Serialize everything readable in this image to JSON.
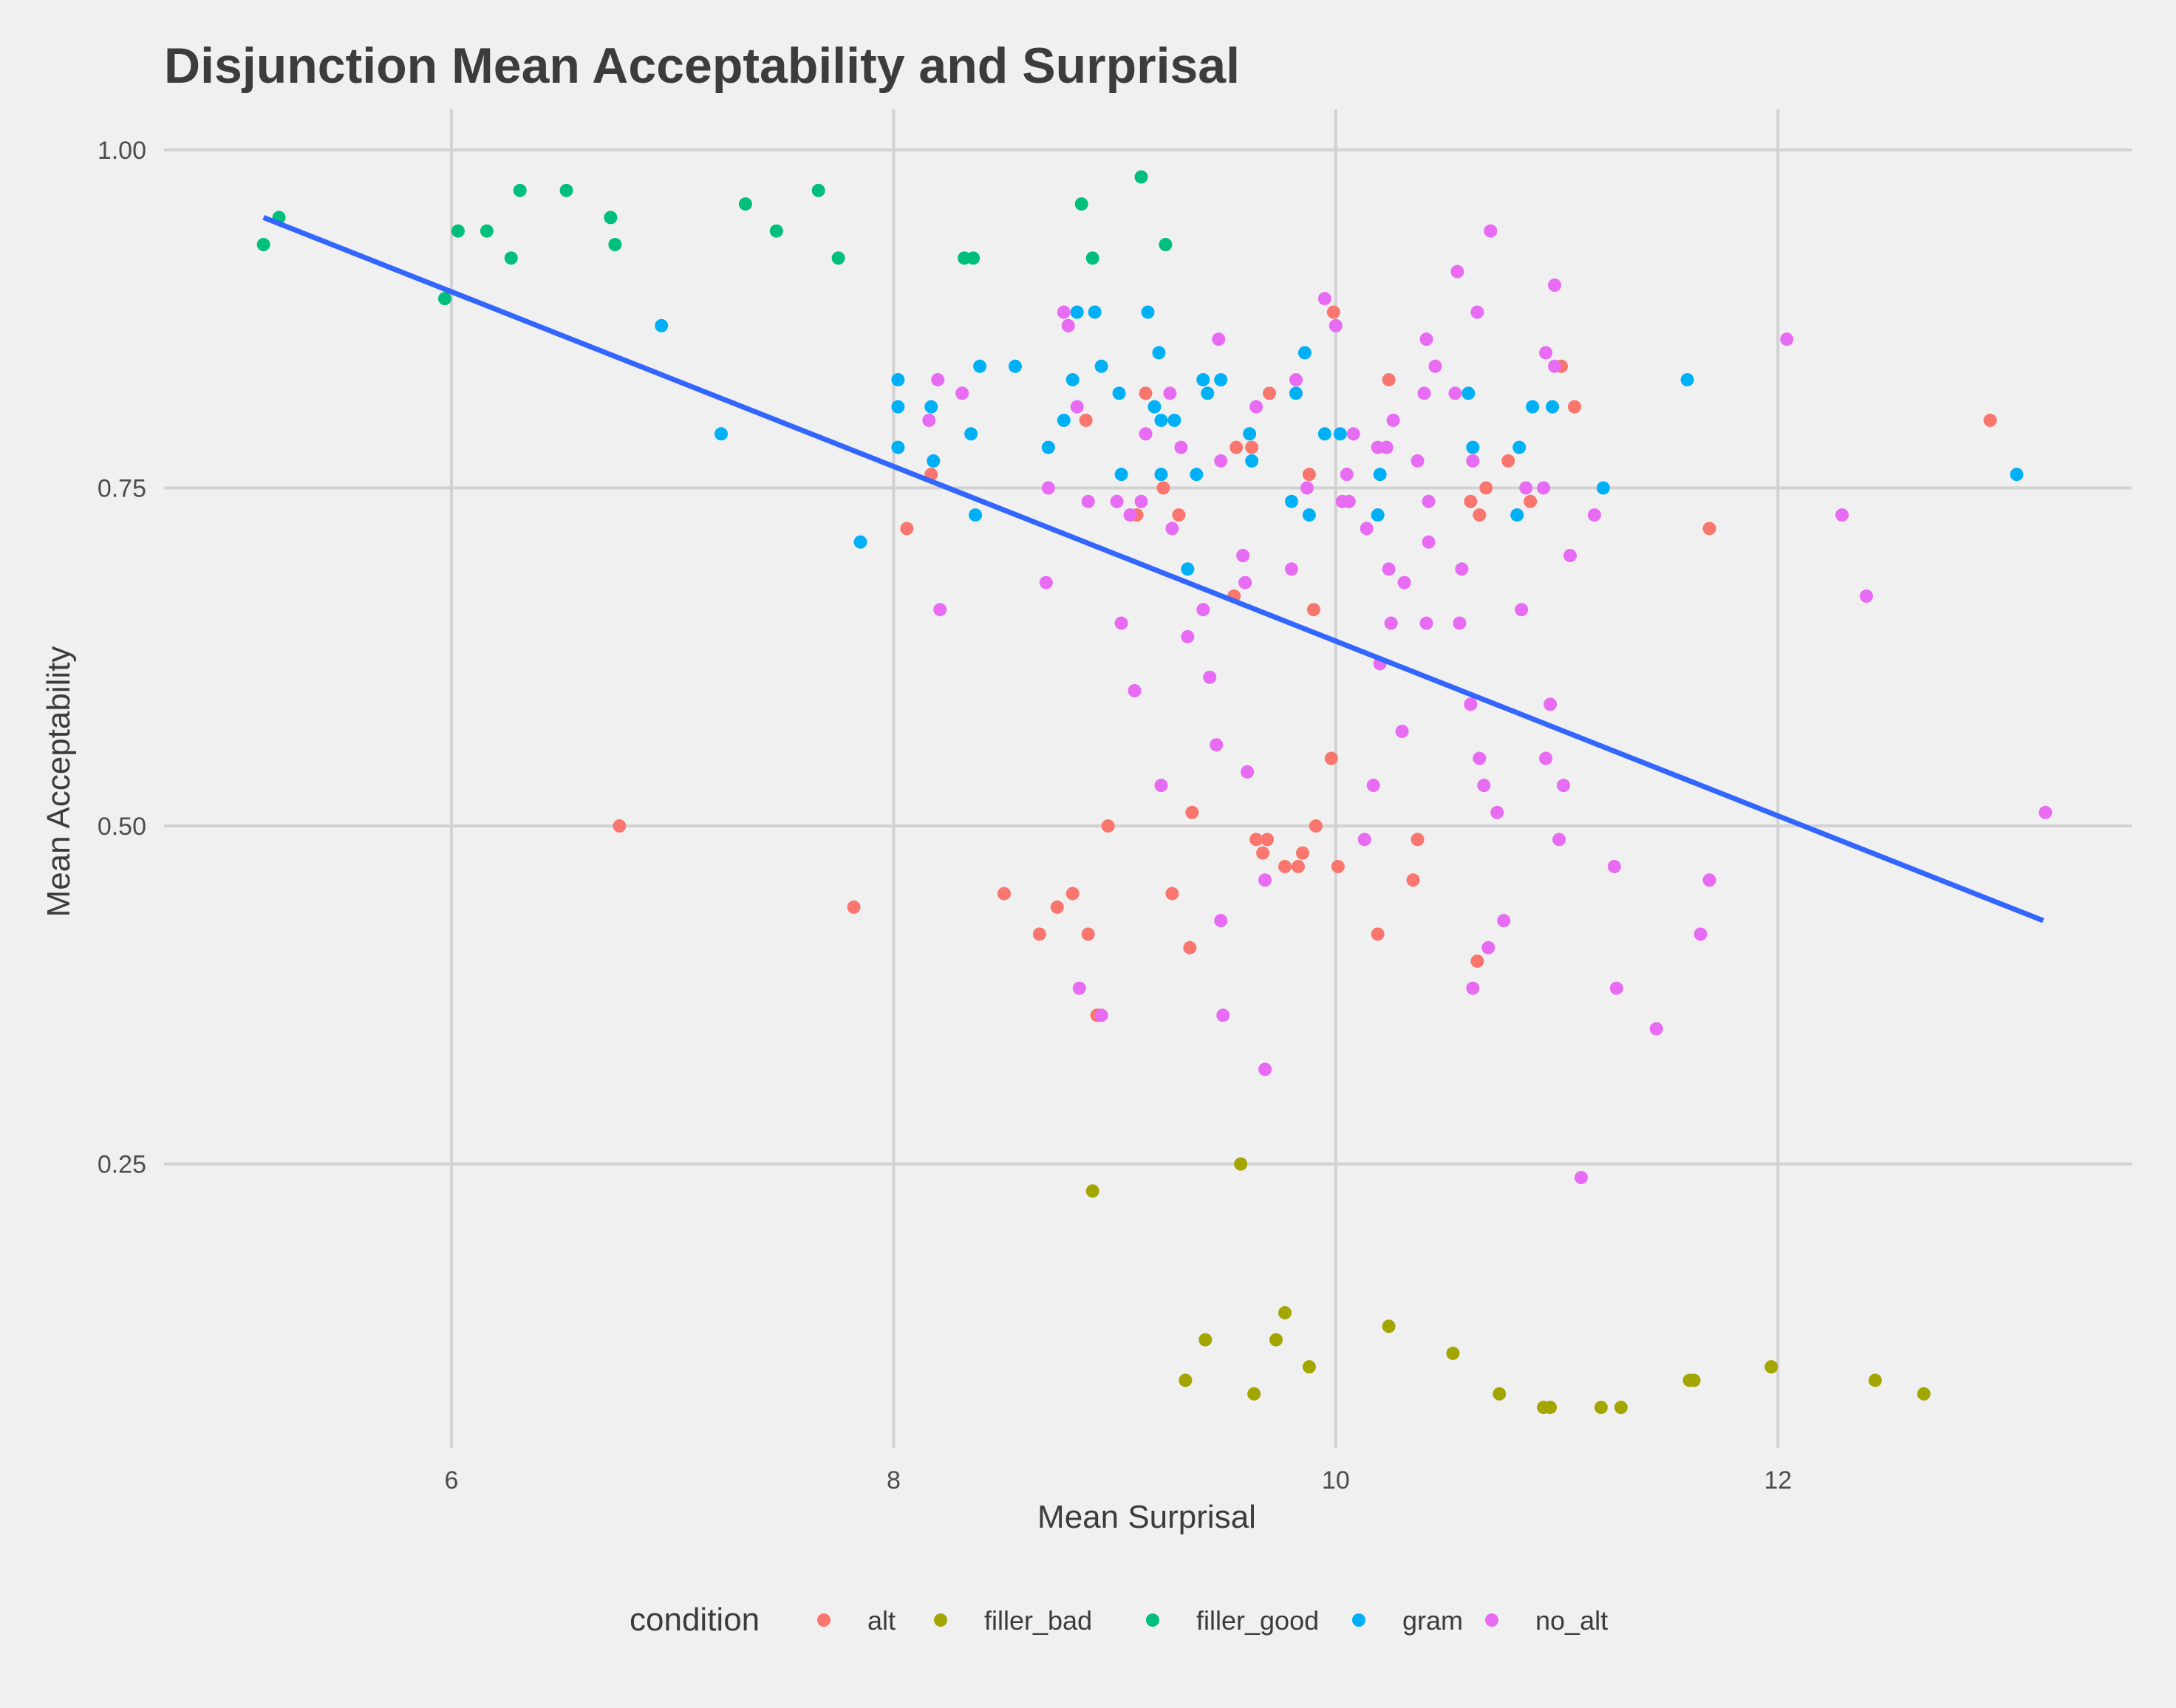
{
  "chart_data": {
    "type": "scatter",
    "title": "Disjunction Mean Acceptability and Surprisal",
    "xlabel": "Mean Surprisal",
    "ylabel": "Mean Acceptability",
    "xlim": [
      4.7,
      13.6
    ],
    "ylim": [
      0.04,
      1.03
    ],
    "x_ticks": [
      6,
      8,
      10,
      12
    ],
    "y_ticks": [
      0.25,
      0.5,
      0.75,
      1.0
    ],
    "x_tick_labels": [
      "6",
      "8",
      "10",
      "12"
    ],
    "y_tick_labels": [
      "0.25",
      "0.50",
      "0.75",
      "1.00"
    ],
    "grid": true,
    "legend": {
      "title": "condition",
      "position": "bottom"
    },
    "fit_line": {
      "type": "linear",
      "color": "#3366ff",
      "x": [
        5.15,
        13.2
      ],
      "y": [
        0.95,
        0.43
      ]
    },
    "series": [
      {
        "name": "alt",
        "color": "#f8766d",
        "points": [
          [
            6.76,
            0.5
          ],
          [
            7.82,
            0.44
          ],
          [
            8.06,
            0.72
          ],
          [
            8.17,
            0.76
          ],
          [
            8.5,
            0.45
          ],
          [
            8.66,
            0.42
          ],
          [
            8.74,
            0.44
          ],
          [
            8.81,
            0.45
          ],
          [
            8.87,
            0.8
          ],
          [
            8.88,
            0.42
          ],
          [
            8.92,
            0.36
          ],
          [
            8.97,
            0.5
          ],
          [
            9.1,
            0.73
          ],
          [
            9.14,
            0.82
          ],
          [
            9.22,
            0.75
          ],
          [
            9.26,
            0.45
          ],
          [
            9.29,
            0.73
          ],
          [
            9.34,
            0.41
          ],
          [
            9.35,
            0.51
          ],
          [
            9.54,
            0.67
          ],
          [
            9.55,
            0.78
          ],
          [
            9.62,
            0.78
          ],
          [
            9.64,
            0.49
          ],
          [
            9.67,
            0.48
          ],
          [
            9.69,
            0.49
          ],
          [
            9.7,
            0.82
          ],
          [
            9.77,
            0.47
          ],
          [
            9.83,
            0.47
          ],
          [
            9.85,
            0.48
          ],
          [
            9.88,
            0.76
          ],
          [
            9.9,
            0.66
          ],
          [
            9.91,
            0.5
          ],
          [
            9.98,
            0.55
          ],
          [
            9.99,
            0.88
          ],
          [
            10.01,
            0.47
          ],
          [
            10.19,
            0.42
          ],
          [
            10.24,
            0.83
          ],
          [
            10.35,
            0.46
          ],
          [
            10.37,
            0.49
          ],
          [
            10.61,
            0.74
          ],
          [
            10.64,
            0.4
          ],
          [
            10.65,
            0.73
          ],
          [
            10.68,
            0.75
          ],
          [
            10.78,
            0.77
          ],
          [
            10.88,
            0.74
          ],
          [
            11.02,
            0.84
          ],
          [
            11.08,
            0.81
          ],
          [
            11.69,
            0.72
          ],
          [
            12.96,
            0.8
          ]
        ]
      },
      {
        "name": "filler_bad",
        "color": "#a3a500",
        "points": [
          [
            8.9,
            0.23
          ],
          [
            9.32,
            0.09
          ],
          [
            9.41,
            0.12
          ],
          [
            9.57,
            0.25
          ],
          [
            9.63,
            0.08
          ],
          [
            9.73,
            0.12
          ],
          [
            9.77,
            0.14
          ],
          [
            9.88,
            0.1
          ],
          [
            10.24,
            0.13
          ],
          [
            10.53,
            0.11
          ],
          [
            10.74,
            0.08
          ],
          [
            10.94,
            0.07
          ],
          [
            10.97,
            0.07
          ],
          [
            11.2,
            0.07
          ],
          [
            11.29,
            0.07
          ],
          [
            11.6,
            0.09
          ],
          [
            11.62,
            0.09
          ],
          [
            11.97,
            0.1
          ],
          [
            12.44,
            0.09
          ],
          [
            12.66,
            0.08
          ]
        ]
      },
      {
        "name": "filler_good",
        "color": "#00bf7d",
        "points": [
          [
            5.15,
            0.93
          ],
          [
            5.22,
            0.95
          ],
          [
            5.97,
            0.89
          ],
          [
            6.03,
            0.94
          ],
          [
            6.16,
            0.94
          ],
          [
            6.27,
            0.92
          ],
          [
            6.31,
            0.97
          ],
          [
            6.52,
            0.97
          ],
          [
            6.72,
            0.95
          ],
          [
            6.74,
            0.93
          ],
          [
            7.33,
            0.96
          ],
          [
            7.47,
            0.94
          ],
          [
            7.66,
            0.97
          ],
          [
            7.75,
            0.92
          ],
          [
            8.32,
            0.92
          ],
          [
            8.36,
            0.92
          ],
          [
            8.85,
            0.96
          ],
          [
            8.9,
            0.92
          ],
          [
            9.12,
            0.98
          ],
          [
            9.23,
            0.93
          ]
        ]
      },
      {
        "name": "gram",
        "color": "#00b0f6",
        "points": [
          [
            6.95,
            0.87
          ],
          [
            7.22,
            0.79
          ],
          [
            7.85,
            0.71
          ],
          [
            8.02,
            0.83
          ],
          [
            8.02,
            0.81
          ],
          [
            8.02,
            0.78
          ],
          [
            8.17,
            0.81
          ],
          [
            8.18,
            0.77
          ],
          [
            8.35,
            0.79
          ],
          [
            8.37,
            0.73
          ],
          [
            8.39,
            0.84
          ],
          [
            8.55,
            0.84
          ],
          [
            8.7,
            0.78
          ],
          [
            8.77,
            0.8
          ],
          [
            8.81,
            0.83
          ],
          [
            8.83,
            0.88
          ],
          [
            8.91,
            0.88
          ],
          [
            8.94,
            0.84
          ],
          [
            9.02,
            0.82
          ],
          [
            9.03,
            0.76
          ],
          [
            9.15,
            0.88
          ],
          [
            9.18,
            0.81
          ],
          [
            9.2,
            0.85
          ],
          [
            9.21,
            0.8
          ],
          [
            9.21,
            0.76
          ],
          [
            9.27,
            0.8
          ],
          [
            9.33,
            0.69
          ],
          [
            9.37,
            0.76
          ],
          [
            9.4,
            0.83
          ],
          [
            9.42,
            0.82
          ],
          [
            9.48,
            0.83
          ],
          [
            9.61,
            0.79
          ],
          [
            9.62,
            0.77
          ],
          [
            9.8,
            0.74
          ],
          [
            9.82,
            0.82
          ],
          [
            9.86,
            0.85
          ],
          [
            9.88,
            0.73
          ],
          [
            9.95,
            0.79
          ],
          [
            10.02,
            0.79
          ],
          [
            10.19,
            0.73
          ],
          [
            10.2,
            0.76
          ],
          [
            10.6,
            0.82
          ],
          [
            10.62,
            0.78
          ],
          [
            10.82,
            0.73
          ],
          [
            10.83,
            0.78
          ],
          [
            10.89,
            0.81
          ],
          [
            10.98,
            0.81
          ],
          [
            11.21,
            0.75
          ],
          [
            11.59,
            0.83
          ],
          [
            13.08,
            0.76
          ]
        ]
      },
      {
        "name": "no_alt",
        "color": "#e76bf3",
        "points": [
          [
            8.16,
            0.8
          ],
          [
            8.2,
            0.83
          ],
          [
            8.21,
            0.66
          ],
          [
            8.31,
            0.82
          ],
          [
            8.69,
            0.68
          ],
          [
            8.7,
            0.75
          ],
          [
            8.77,
            0.88
          ],
          [
            8.79,
            0.87
          ],
          [
            8.83,
            0.81
          ],
          [
            8.84,
            0.38
          ],
          [
            8.88,
            0.74
          ],
          [
            8.94,
            0.36
          ],
          [
            9.01,
            0.74
          ],
          [
            9.03,
            0.65
          ],
          [
            9.07,
            0.73
          ],
          [
            9.09,
            0.6
          ],
          [
            9.12,
            0.74
          ],
          [
            9.14,
            0.79
          ],
          [
            9.21,
            0.53
          ],
          [
            9.25,
            0.82
          ],
          [
            9.26,
            0.72
          ],
          [
            9.3,
            0.78
          ],
          [
            9.33,
            0.64
          ],
          [
            9.4,
            0.66
          ],
          [
            9.43,
            0.61
          ],
          [
            9.46,
            0.56
          ],
          [
            9.47,
            0.86
          ],
          [
            9.48,
            0.77
          ],
          [
            9.48,
            0.43
          ],
          [
            9.49,
            0.36
          ],
          [
            9.58,
            0.7
          ],
          [
            9.59,
            0.68
          ],
          [
            9.6,
            0.54
          ],
          [
            9.64,
            0.81
          ],
          [
            9.68,
            0.46
          ],
          [
            9.68,
            0.32
          ],
          [
            9.8,
            0.69
          ],
          [
            9.82,
            0.83
          ],
          [
            9.87,
            0.75
          ],
          [
            9.95,
            0.89
          ],
          [
            10.0,
            0.87
          ],
          [
            10.03,
            0.74
          ],
          [
            10.05,
            0.76
          ],
          [
            10.06,
            0.74
          ],
          [
            10.08,
            0.79
          ],
          [
            10.13,
            0.49
          ],
          [
            10.14,
            0.72
          ],
          [
            10.17,
            0.53
          ],
          [
            10.19,
            0.78
          ],
          [
            10.2,
            0.62
          ],
          [
            10.23,
            0.78
          ],
          [
            10.24,
            0.69
          ],
          [
            10.25,
            0.65
          ],
          [
            10.26,
            0.8
          ],
          [
            10.3,
            0.57
          ],
          [
            10.31,
            0.68
          ],
          [
            10.37,
            0.77
          ],
          [
            10.4,
            0.82
          ],
          [
            10.41,
            0.65
          ],
          [
            10.41,
            0.86
          ],
          [
            10.42,
            0.74
          ],
          [
            10.42,
            0.71
          ],
          [
            10.45,
            0.84
          ],
          [
            10.54,
            0.82
          ],
          [
            10.55,
            0.91
          ],
          [
            10.56,
            0.65
          ],
          [
            10.57,
            0.69
          ],
          [
            10.61,
            0.59
          ],
          [
            10.62,
            0.77
          ],
          [
            10.62,
            0.38
          ],
          [
            10.64,
            0.88
          ],
          [
            10.65,
            0.55
          ],
          [
            10.67,
            0.53
          ],
          [
            10.69,
            0.41
          ],
          [
            10.7,
            0.94
          ],
          [
            10.73,
            0.51
          ],
          [
            10.76,
            0.43
          ],
          [
            10.84,
            0.66
          ],
          [
            10.86,
            0.75
          ],
          [
            10.94,
            0.75
          ],
          [
            10.95,
            0.55
          ],
          [
            10.95,
            0.85
          ],
          [
            10.97,
            0.59
          ],
          [
            10.99,
            0.84
          ],
          [
            10.99,
            0.9
          ],
          [
            11.01,
            0.49
          ],
          [
            11.03,
            0.53
          ],
          [
            11.06,
            0.7
          ],
          [
            11.11,
            0.24
          ],
          [
            11.17,
            0.73
          ],
          [
            11.26,
            0.47
          ],
          [
            11.27,
            0.38
          ],
          [
            11.45,
            0.35
          ],
          [
            11.65,
            0.42
          ],
          [
            11.69,
            0.46
          ],
          [
            12.04,
            0.86
          ],
          [
            12.29,
            0.73
          ],
          [
            12.4,
            0.67
          ],
          [
            13.21,
            0.51
          ]
        ]
      }
    ]
  }
}
